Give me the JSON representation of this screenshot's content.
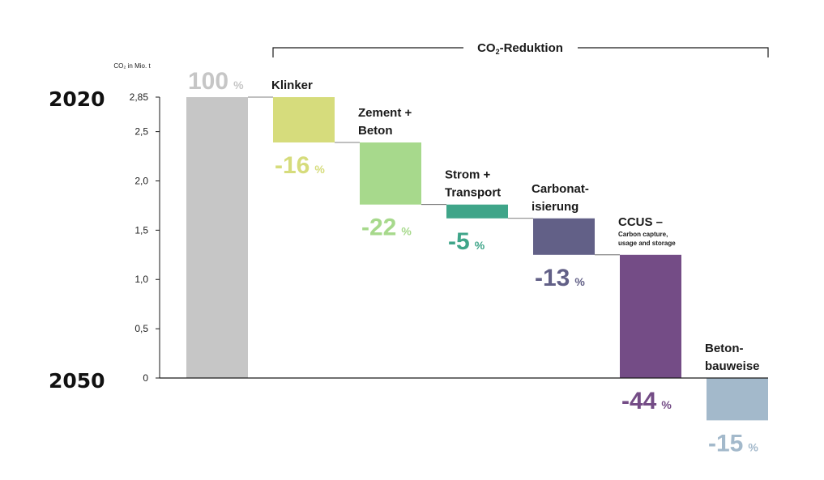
{
  "chart_data": {
    "type": "bar",
    "subtype": "waterfall",
    "unit_label": "CO₂ in Mio. t",
    "y_ticks": [
      "2,85",
      "2,5",
      "2,0",
      "1,5",
      "1,0",
      "0,5",
      "0"
    ],
    "y_tick_values": [
      2.85,
      2.5,
      2.0,
      1.5,
      1.0,
      0.5,
      0
    ],
    "ylim": [
      0,
      2.85
    ],
    "year_top": "2020",
    "year_bottom": "2050",
    "bracket_title_pre": "CO",
    "bracket_title_sub": "2",
    "bracket_title_post": "-Reduktion",
    "percent_sign": "%",
    "axis_color": "#1a1a1a",
    "bars": [
      {
        "lines": [],
        "pct": "100",
        "start": 0,
        "end": 2.85,
        "color": "#c6c6c6",
        "label_color": "#c6c6c6"
      },
      {
        "lines": [
          "Klinker"
        ],
        "pct": "-16",
        "start": 2.85,
        "end": 2.39,
        "color": "#d6dc7c",
        "label_color": "#d6dc7c"
      },
      {
        "lines": [
          "Zement +",
          "Beton"
        ],
        "pct": "-22",
        "start": 2.39,
        "end": 1.76,
        "color": "#a7d98c",
        "label_color": "#a7d98c"
      },
      {
        "lines": [
          "Strom +",
          "Transport"
        ],
        "pct": "-5",
        "start": 1.76,
        "end": 1.62,
        "color": "#3fa589",
        "label_color": "#3fa589"
      },
      {
        "lines": [
          "Carbonat-",
          "isierung"
        ],
        "pct": "-13",
        "start": 1.62,
        "end": 1.25,
        "color": "#626087",
        "label_color": "#626087"
      },
      {
        "lines": [
          "CCUS –"
        ],
        "sub_lines": [
          "Carbon capture,",
          "usage and storage"
        ],
        "pct": "-44",
        "start": 1.25,
        "end": 0,
        "color": "#744c86",
        "label_color": "#744c86"
      },
      {
        "lines": [
          "Beton-",
          "bauweise"
        ],
        "pct": "-15",
        "start": 0,
        "end": -0.43,
        "color": "#a3b9cb",
        "label_color": "#a3b9cb"
      }
    ]
  }
}
